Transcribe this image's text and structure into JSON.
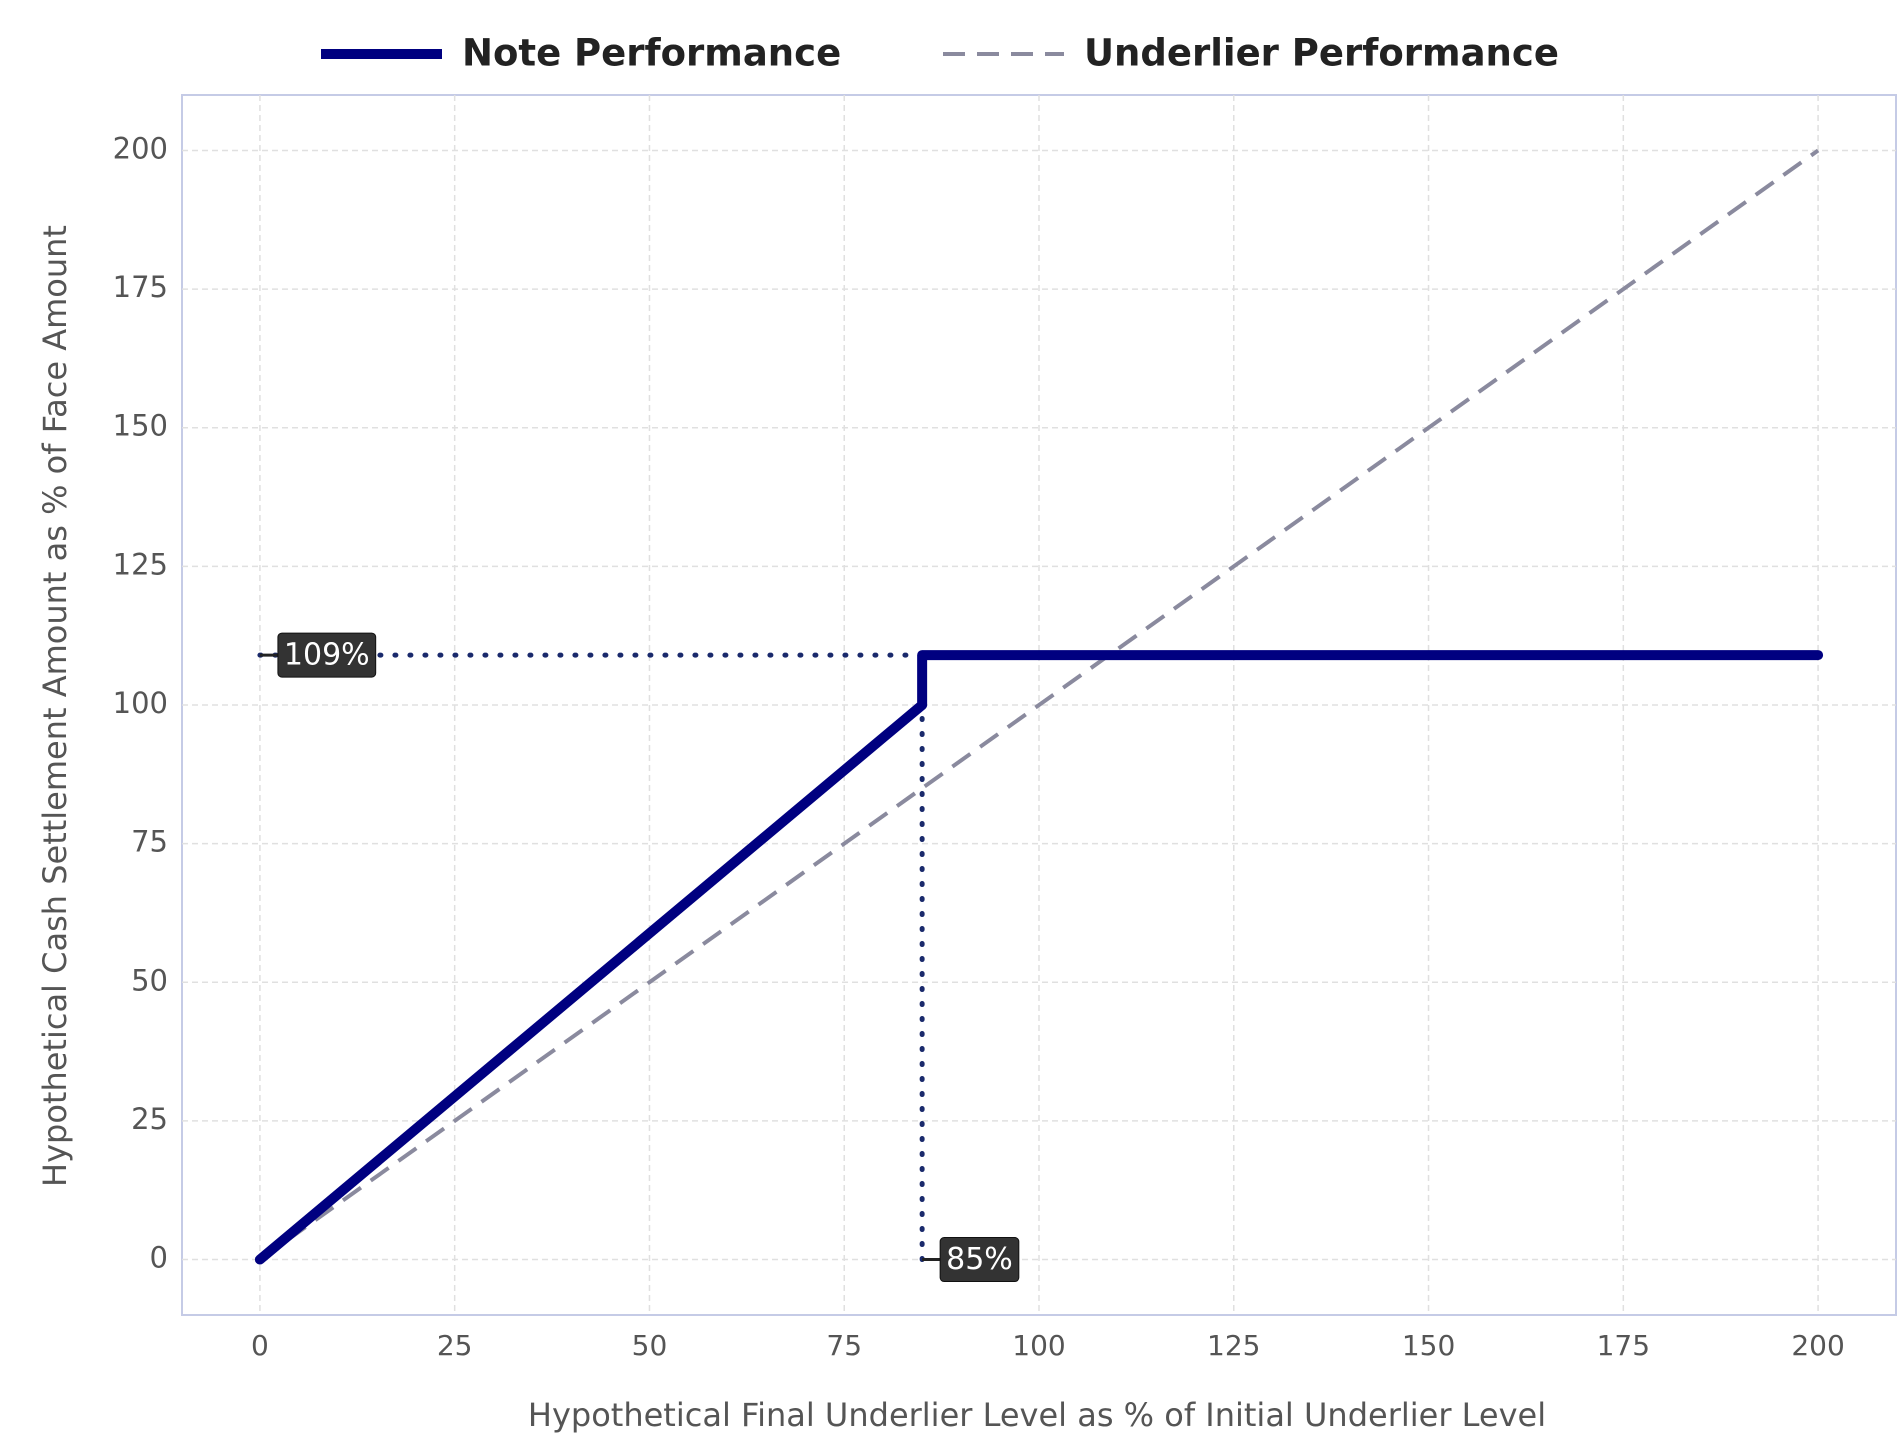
{
  "chart_data": {
    "type": "line",
    "xlabel": "Hypothetical Final Underlier Level as % of Initial Underlier Level",
    "ylabel": "Hypothetical Cash Settlement Amount as % of Face Amount",
    "series": [
      {
        "name": "Note Performance",
        "color": "#000080",
        "style": "solid",
        "x": [
          0,
          85,
          85,
          200
        ],
        "values": [
          0,
          100,
          109,
          109
        ]
      },
      {
        "name": "Underlier Performance",
        "color": "#8a8a9e",
        "style": "dashed",
        "x": [
          0,
          200
        ],
        "values": [
          0,
          200
        ]
      }
    ],
    "annotations": [
      {
        "text": "109%",
        "x": 0,
        "y": 109
      },
      {
        "text": "85%",
        "x": 85,
        "y": 0
      }
    ],
    "xlim": [
      -10,
      210
    ],
    "ylim": [
      -10,
      210
    ],
    "xticks": [
      0,
      25,
      50,
      75,
      100,
      125,
      150,
      175,
      200
    ],
    "yticks": [
      0,
      25,
      50,
      75,
      100,
      125,
      150,
      175,
      200
    ],
    "grid": true,
    "legend": "top"
  }
}
